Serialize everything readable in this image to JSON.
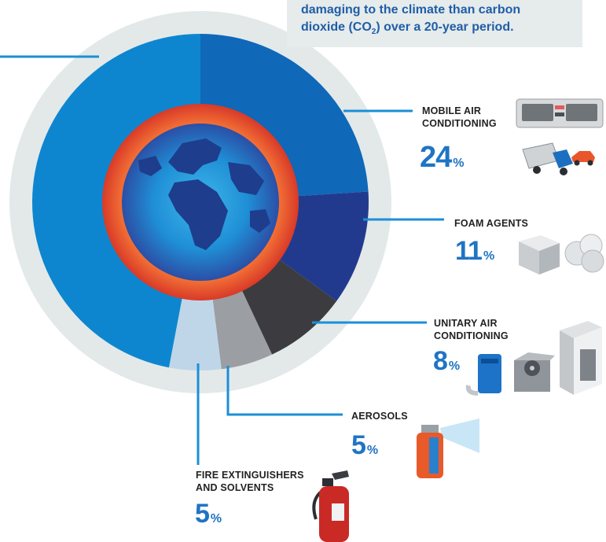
{
  "note": {
    "line1": "damaging to the climate than carbon",
    "line2_before": "dioxide (CO",
    "line2_sub": "2",
    "line2_after": ") over a 20-year period."
  },
  "chart_data": {
    "type": "pie",
    "categories": [
      "",
      "MOBILE AIR CONDITIONING",
      "FOAM AGENTS",
      "UNITARY AIR CONDITIONING",
      "AEROSOLS",
      "FIRE EXTINGUISHERS AND SOLVENTS"
    ],
    "values": [
      47,
      24,
      11,
      8,
      5,
      5
    ],
    "value_labels": [
      "",
      "24",
      "11",
      "8",
      "5",
      "5"
    ],
    "unit": "%",
    "colors": [
      "#0e86cf",
      "#0f68b8",
      "#223a8e",
      "#3c3c40",
      "#9b9ea2",
      "#bfd6e8"
    ],
    "title": "",
    "legend": "none"
  },
  "colors": {
    "accent": "#1f74c4",
    "leader_line": "#1b8fd6",
    "note_background": "#e6ebeb",
    "ring": "#e8424a",
    "outer_halo": "#e3e9e9"
  },
  "icons": {
    "mobile": [
      "air-conditioner-panel-icon",
      "truck-icon",
      "car-icon"
    ],
    "foam": [
      "foam-cube-icon",
      "foam-bubbles-icon"
    ],
    "unitary": [
      "portable-air-conditioner-icon",
      "outdoor-ac-unit-icon",
      "cabinet-ac-unit-icon"
    ],
    "aerosols": [
      "spray-can-icon"
    ],
    "fire": [
      "fire-extinguisher-icon"
    ]
  }
}
